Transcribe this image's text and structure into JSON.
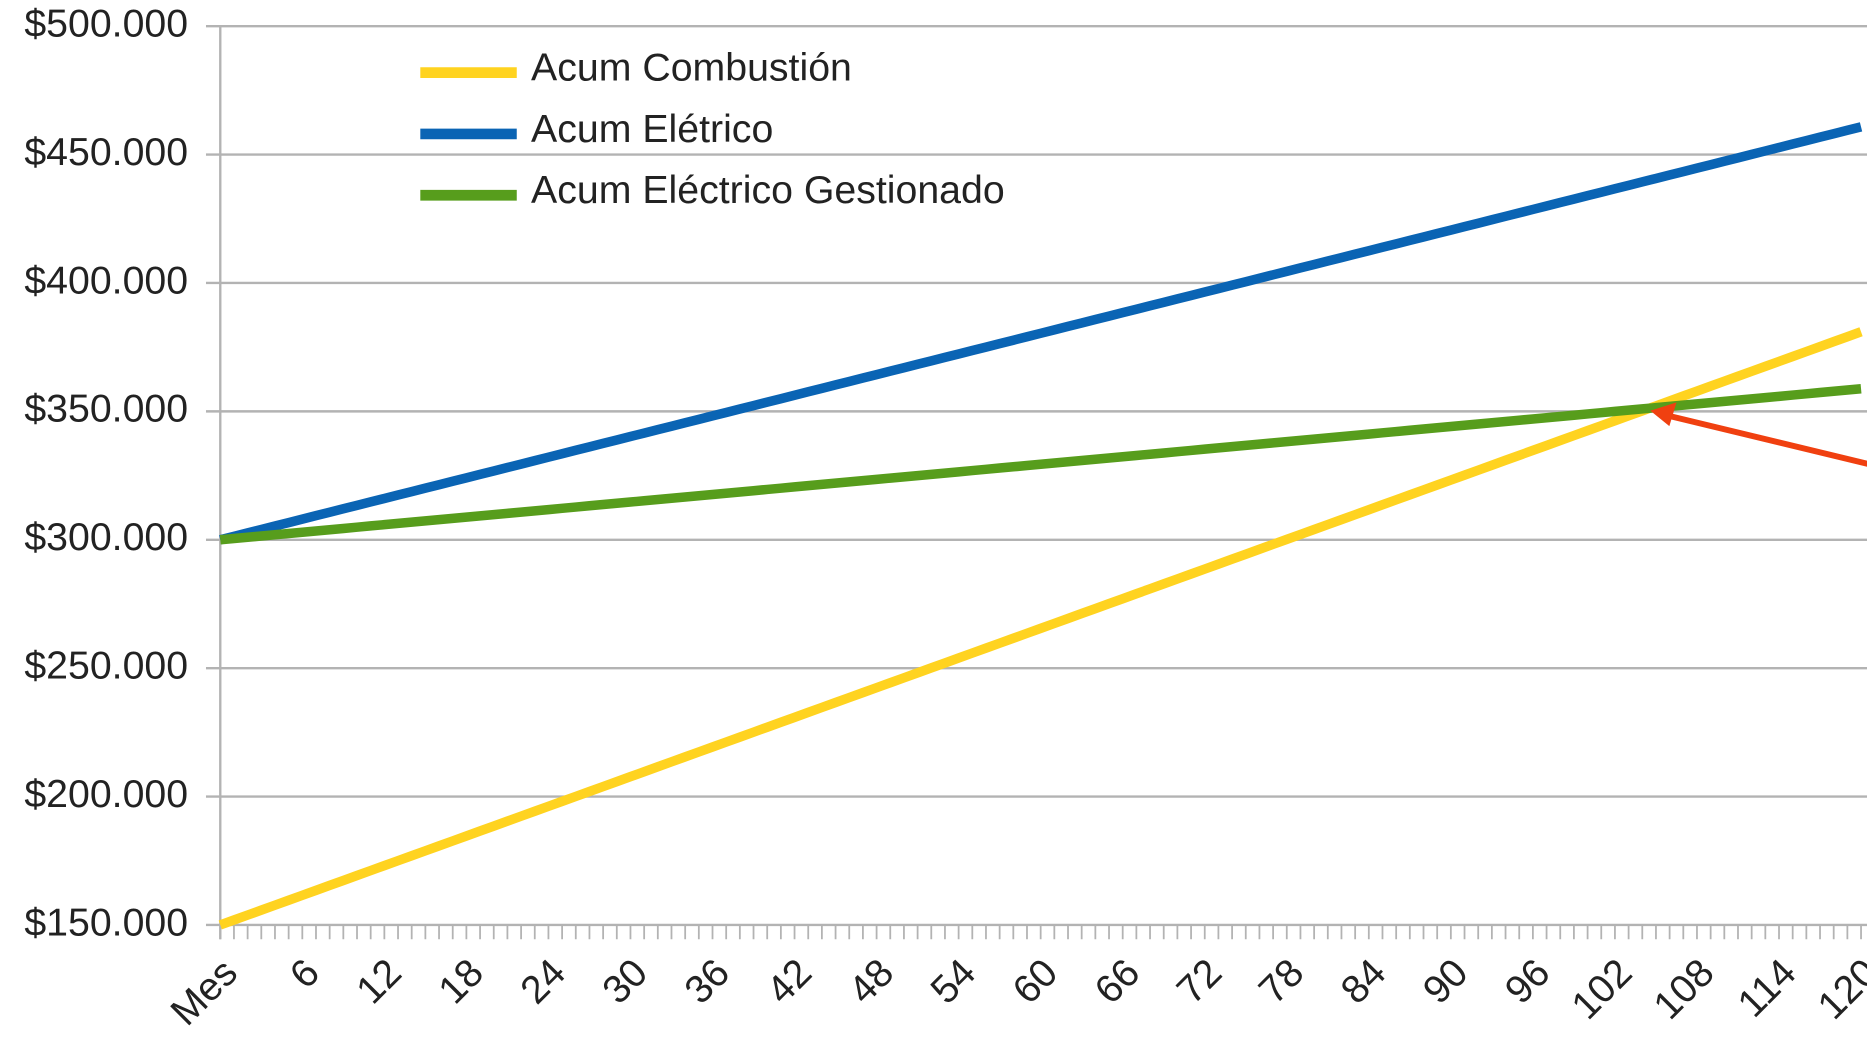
{
  "chart_data": {
    "type": "line",
    "categories": [
      "Mes",
      null,
      null,
      null,
      null,
      null,
      "6",
      null,
      null,
      null,
      null,
      null,
      "12",
      null,
      null,
      null,
      null,
      null,
      "18",
      null,
      null,
      null,
      null,
      null,
      "24",
      null,
      null,
      null,
      null,
      null,
      "30",
      null,
      null,
      null,
      null,
      null,
      "36",
      null,
      null,
      null,
      null,
      null,
      "42",
      null,
      null,
      null,
      null,
      null,
      "48",
      null,
      null,
      null,
      null,
      null,
      "54",
      null,
      null,
      null,
      null,
      null,
      "60",
      null,
      null,
      null,
      null,
      null,
      "66",
      null,
      null,
      null,
      null,
      null,
      "72",
      null,
      null,
      null,
      null,
      null,
      "78",
      null,
      null,
      null,
      null,
      null,
      "84",
      null,
      null,
      null,
      null,
      null,
      "90",
      null,
      null,
      null,
      null,
      null,
      "96",
      null,
      null,
      null,
      null,
      null,
      "102",
      null,
      null,
      null,
      null,
      null,
      "108",
      null,
      null,
      null,
      null,
      null,
      "114",
      null,
      null,
      null,
      null,
      null,
      "120"
    ],
    "series": [
      {
        "name": "Acum Combustión",
        "color": "#ffd320",
        "values": [
          150000,
          151925,
          153850,
          155775,
          157700,
          159625,
          161550,
          163475,
          165400,
          167325,
          169250,
          171175,
          173100,
          175025,
          176950,
          178875,
          180800,
          182725,
          184650,
          186575,
          188500,
          190425,
          192350,
          194275,
          196200,
          198125,
          200050,
          201975,
          203900,
          205825,
          207750,
          209675,
          211600,
          213525,
          215450,
          217375,
          219300,
          221225,
          223150,
          225075,
          227000,
          228925,
          230850,
          232775,
          234700,
          236625,
          238550,
          240475,
          242400,
          244325,
          246250,
          248175,
          250100,
          252025,
          253950,
          255875,
          257800,
          259725,
          261650,
          263575,
          265500,
          267425,
          269350,
          271275,
          273200,
          275125,
          277050,
          278975,
          280900,
          282825,
          284750,
          286675,
          288600,
          290525,
          292450,
          294375,
          296300,
          298225,
          300150,
          302075,
          304000,
          305925,
          307850,
          309775,
          311700,
          313625,
          315550,
          317475,
          319400,
          321325,
          323250,
          325175,
          327100,
          329025,
          330950,
          332875,
          334800,
          336725,
          338650,
          340575,
          342500,
          344425,
          346350,
          348275,
          350200,
          352125,
          354050,
          355975,
          357900,
          359825,
          361750,
          363675,
          365600,
          367525,
          369450,
          371375,
          373300,
          375225,
          377150,
          379075,
          381000
        ]
      },
      {
        "name": "Acum Elétrico",
        "color": "#0a64b4",
        "values": [
          300000,
          301340,
          302680,
          304020,
          305360,
          306700,
          308040,
          309380,
          310720,
          312060,
          313400,
          314740,
          316080,
          317420,
          318760,
          320100,
          321440,
          322780,
          324120,
          325460,
          326800,
          328140,
          329480,
          330820,
          332160,
          333500,
          334840,
          336180,
          337520,
          338860,
          340200,
          341540,
          342880,
          344220,
          345560,
          346900,
          348240,
          349580,
          350920,
          352260,
          353600,
          354940,
          356280,
          357620,
          358960,
          360300,
          361640,
          362980,
          364320,
          365660,
          367000,
          368340,
          369680,
          371020,
          372360,
          373700,
          375040,
          376380,
          377720,
          379060,
          380400,
          381740,
          383080,
          384420,
          385760,
          387100,
          388440,
          389780,
          391120,
          392460,
          393800,
          395140,
          396480,
          397820,
          399160,
          400500,
          401840,
          403180,
          404520,
          405860,
          407200,
          408540,
          409880,
          411220,
          412560,
          413900,
          415240,
          416580,
          417920,
          419260,
          420600,
          421940,
          423280,
          424620,
          425960,
          427300,
          428640,
          429980,
          431320,
          432660,
          434000,
          435340,
          436680,
          438020,
          439360,
          440700,
          442040,
          443380,
          444720,
          446060,
          447400,
          448740,
          450080,
          451420,
          452760,
          454100,
          455440,
          456780,
          458120,
          459460,
          460800
        ]
      },
      {
        "name": "Acum Eléctrico Gestionado",
        "color": "#579d1c",
        "values": [
          300000,
          300490,
          300980,
          301470,
          301960,
          302450,
          302940,
          303430,
          303920,
          304410,
          304900,
          305390,
          305880,
          306370,
          306860,
          307350,
          307840,
          308330,
          308820,
          309310,
          309800,
          310290,
          310780,
          311270,
          311760,
          312250,
          312740,
          313230,
          313720,
          314210,
          314700,
          315190,
          315680,
          316170,
          316660,
          317150,
          317640,
          318130,
          318620,
          319110,
          319600,
          320090,
          320580,
          321070,
          321560,
          322050,
          322540,
          323030,
          323520,
          324010,
          324500,
          324990,
          325480,
          325970,
          326460,
          326950,
          327440,
          327930,
          328420,
          328910,
          329400,
          329890,
          330380,
          330870,
          331360,
          331850,
          332340,
          332830,
          333320,
          333810,
          334300,
          334790,
          335280,
          335770,
          336260,
          336750,
          337240,
          337730,
          338220,
          338710,
          339200,
          339690,
          340180,
          340670,
          341160,
          341650,
          342140,
          342630,
          343120,
          343610,
          344100,
          344590,
          345080,
          345570,
          346060,
          346550,
          347040,
          347530,
          348020,
          348510,
          349000,
          349490,
          349980,
          350470,
          350960,
          351450,
          351940,
          352430,
          352920,
          353410,
          353900,
          354390,
          354880,
          355370,
          355860,
          356350,
          356840,
          357330,
          357820,
          358310,
          358800
        ]
      }
    ],
    "ylim": [
      150000,
      500000
    ],
    "yticks": [
      {
        "value": 150000,
        "label": "$150.000"
      },
      {
        "value": 200000,
        "label": "$200.000"
      },
      {
        "value": 250000,
        "label": "$250.000"
      },
      {
        "value": 300000,
        "label": "$300.000"
      },
      {
        "value": 350000,
        "label": "$350.000"
      },
      {
        "value": 400000,
        "label": "$400.000"
      },
      {
        "value": 450000,
        "label": "$450.000"
      },
      {
        "value": 500000,
        "label": "$500.000"
      }
    ],
    "grid": true,
    "legend": "top-left"
  }
}
